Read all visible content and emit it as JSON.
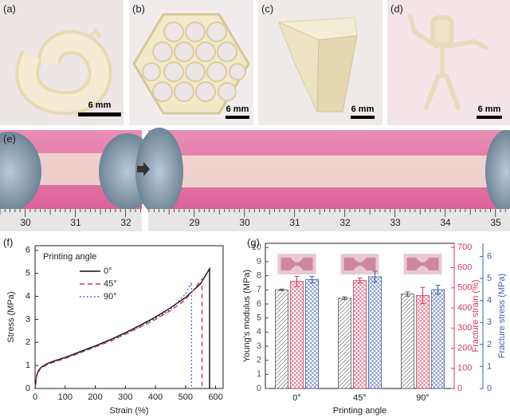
{
  "panels": {
    "a": "(a)",
    "b": "(b)",
    "c": "(c)",
    "d": "(d)",
    "e": "(e)"
  },
  "scale_bars": [
    "6 mm",
    "6 mm",
    "6 mm",
    "6 mm"
  ],
  "ruler_before": [
    30,
    31,
    32
  ],
  "ruler_after": [
    29,
    30,
    31,
    32,
    33,
    34,
    35
  ],
  "chart_data": [
    {
      "type": "line",
      "panel": "(f)",
      "xlabel": "Strain (%)",
      "ylabel": "Stress (MPa)",
      "legend_title": "Printing angle",
      "xlim": [
        0,
        625
      ],
      "xticks": [
        0,
        100,
        200,
        300,
        400,
        500,
        600
      ],
      "ylim": [
        0,
        6.2
      ],
      "yticks": [
        0,
        1,
        2,
        3,
        4,
        5,
        6
      ],
      "series": [
        {
          "name": "0°",
          "color": "#111111",
          "line_style": "solid",
          "x": [
            0,
            5,
            10,
            20,
            40,
            60,
            100,
            150,
            200,
            250,
            300,
            350,
            400,
            450,
            500,
            550,
            580,
            580
          ],
          "values": [
            0,
            0.55,
            0.75,
            0.92,
            1.08,
            1.18,
            1.35,
            1.6,
            1.85,
            2.12,
            2.42,
            2.75,
            3.1,
            3.5,
            3.95,
            4.55,
            5.2,
            0
          ]
        },
        {
          "name": "45°",
          "color": "#d6395a",
          "line_style": "dashed",
          "x": [
            0,
            5,
            10,
            20,
            40,
            60,
            100,
            150,
            200,
            250,
            300,
            350,
            400,
            450,
            500,
            555,
            555
          ],
          "values": [
            0,
            0.5,
            0.7,
            0.88,
            1.03,
            1.13,
            1.3,
            1.55,
            1.8,
            2.05,
            2.35,
            2.67,
            3.0,
            3.38,
            3.85,
            4.75,
            0
          ]
        },
        {
          "name": "90°",
          "color": "#3a3ab0",
          "line_style": "dotted",
          "x": [
            0,
            5,
            10,
            20,
            40,
            60,
            100,
            150,
            200,
            250,
            300,
            350,
            400,
            450,
            500,
            520,
            520
          ],
          "values": [
            0,
            0.52,
            0.72,
            0.9,
            1.05,
            1.15,
            1.32,
            1.57,
            1.82,
            2.08,
            2.38,
            2.7,
            3.05,
            3.42,
            4.1,
            4.6,
            0
          ]
        }
      ]
    },
    {
      "type": "bar",
      "panel": "(g)",
      "xlabel": "Printing angle",
      "categories": [
        "0°",
        "45°",
        "90°"
      ],
      "ylim": [
        0,
        10.3
      ],
      "yticks": [
        0,
        1,
        2,
        3,
        4,
        5,
        6,
        7,
        8,
        9,
        10
      ],
      "y2lim": [
        0,
        721
      ],
      "y2ticks": [
        0,
        100,
        200,
        300,
        400,
        500,
        600,
        700
      ],
      "y3lim": [
        0,
        6.6
      ],
      "y3ticks": [
        0,
        1,
        2,
        3,
        4,
        5,
        6
      ],
      "series": [
        {
          "name": "Young's modulus (MPa)",
          "color": "#555555",
          "pattern": "hatch",
          "axis": "y",
          "values": [
            7.0,
            6.4,
            6.7
          ],
          "errors": [
            0.05,
            0.1,
            0.15
          ]
        },
        {
          "name": "Fracture strain (%)",
          "color": "#d6395a",
          "pattern": "crosshatch",
          "axis": "y2",
          "values": [
            532,
            536,
            462
          ],
          "errors": [
            25,
            12,
            40
          ]
        },
        {
          "name": "Fracture stress (MPa)",
          "color": "#3b5fb0",
          "pattern": "crosshatch",
          "axis": "y3",
          "values": [
            4.95,
            5.08,
            4.49
          ],
          "errors": [
            0.15,
            0.25,
            0.2
          ]
        }
      ]
    }
  ]
}
